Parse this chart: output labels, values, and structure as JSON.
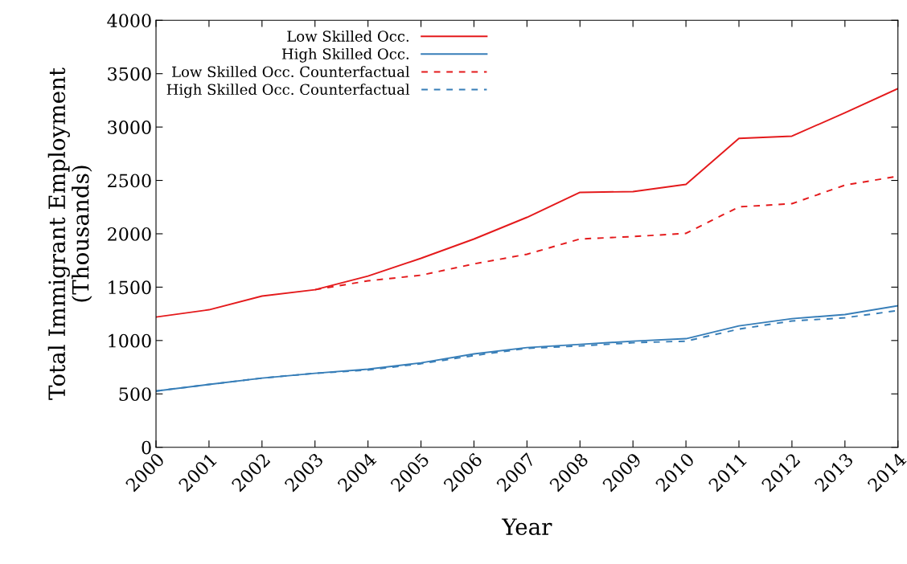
{
  "chart_data": {
    "type": "line",
    "xlabel": "Year",
    "ylabel": "Total Immigrant Employment\n(Thousands)",
    "categories": [
      "2000",
      "2001",
      "2002",
      "2003",
      "2004",
      "2005",
      "2006",
      "2007",
      "2008",
      "2009",
      "2010",
      "2011",
      "2012",
      "2013",
      "2014"
    ],
    "series": [
      {
        "name": "Low Skilled Occ.",
        "color": "#e41a1c",
        "line_style": "solid",
        "values": [
          1220,
          1288,
          1416,
          1476,
          1604,
          1770,
          1951,
          2154,
          2388,
          2395,
          2463,
          2893,
          2915,
          3134,
          3360
        ]
      },
      {
        "name": "High Skilled Occ.",
        "color": "#377eb8",
        "line_style": "solid",
        "values": [
          527,
          588,
          648,
          693,
          731,
          791,
          874,
          934,
          964,
          994,
          1017,
          1137,
          1205,
          1243,
          1326
        ]
      },
      {
        "name": "Low Skilled Occ. Counterfactual",
        "color": "#e41a1c",
        "line_style": "dashed",
        "values": [
          null,
          null,
          null,
          1476,
          1559,
          1612,
          1718,
          1808,
          1951,
          1974,
          2004,
          2252,
          2282,
          2456,
          2539
        ]
      },
      {
        "name": "High Skilled Occ. Counterfactual",
        "color": "#377eb8",
        "line_style": "dashed",
        "values": [
          527,
          588,
          648,
          693,
          723,
          783,
          859,
          927,
          949,
          979,
          994,
          1107,
          1183,
          1213,
          1281
        ]
      }
    ],
    "ylim": [
      0,
      4000
    ],
    "yticks": [
      0,
      500,
      1000,
      1500,
      2000,
      2500,
      3000,
      3500,
      4000
    ],
    "grid": false,
    "legend": "top left",
    "marker": "none"
  }
}
